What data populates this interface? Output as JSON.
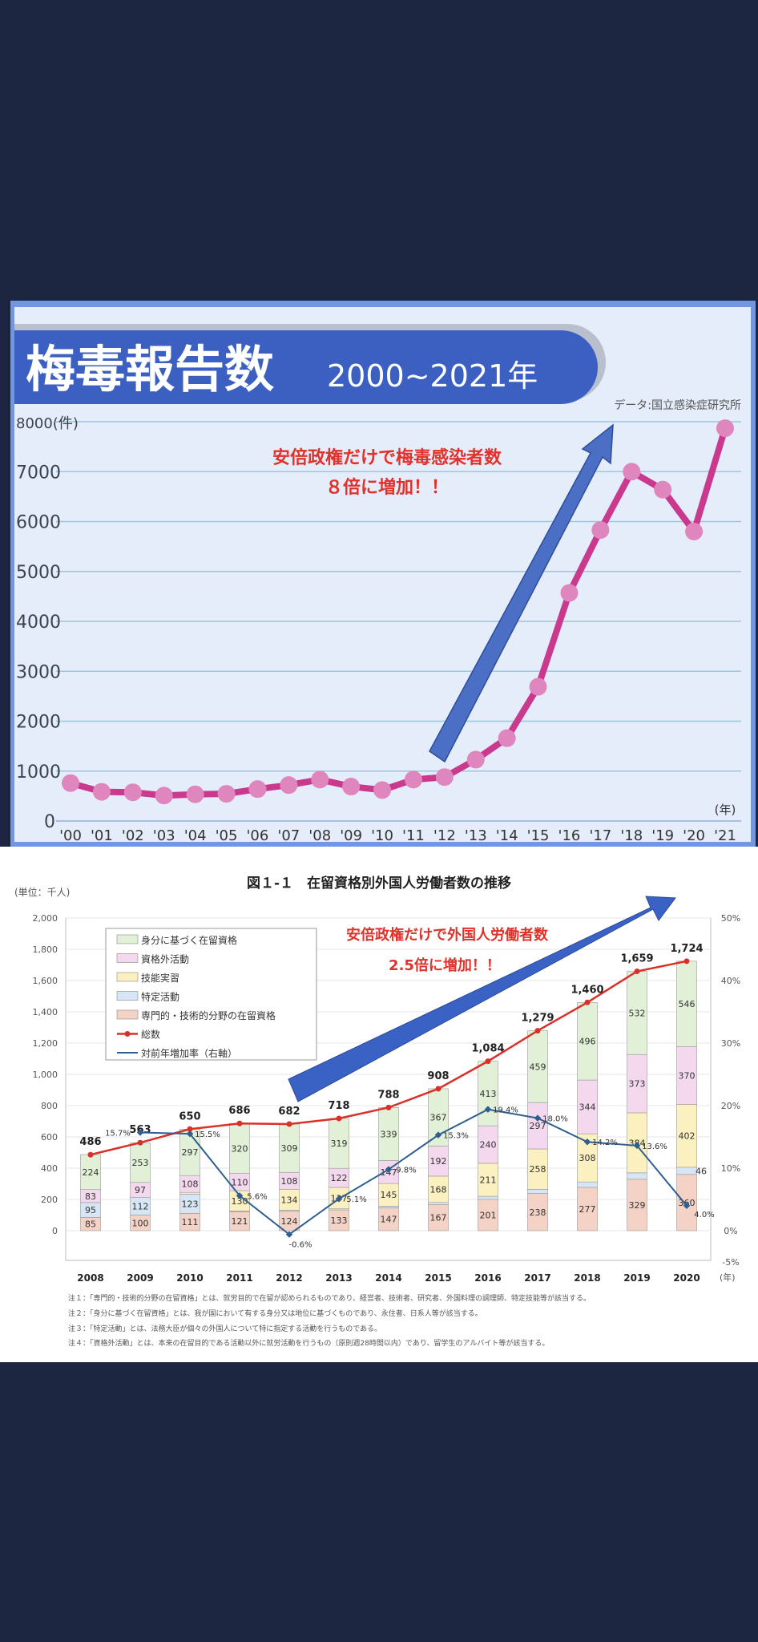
{
  "chart_data": [
    {
      "type": "line",
      "title": "梅毒報告数",
      "subtitle": "2000~2021年",
      "source": "データ:国立感染症研究所",
      "ylabel": "8000(件)",
      "xlabel": "(年)",
      "ylim": [
        0,
        8000
      ],
      "yticks": [
        "0",
        "1000",
        "2000",
        "3000",
        "4000",
        "5000",
        "6000",
        "7000",
        "8000(件)"
      ],
      "grid": true,
      "categories": [
        "'00",
        "'01",
        "'02",
        "'03",
        "'04",
        "'05",
        "'06",
        "'07",
        "'08",
        "'09",
        "'10",
        "'11",
        "'12",
        "'13",
        "'14",
        "'15",
        "'16",
        "'17",
        "'18",
        "'19",
        "'20",
        "'21"
      ],
      "values": [
        760,
        585,
        575,
        510,
        535,
        545,
        640,
        720,
        830,
        690,
        620,
        830,
        880,
        1230,
        1660,
        2690,
        4570,
        5830,
        7000,
        6640,
        5800,
        7870
      ],
      "annotation": [
        "安倍政権だけで梅毒感染者数",
        "８倍に増加！！"
      ],
      "colors": {
        "line": "#c93a8e",
        "marker": "#de86bd",
        "arrow": "#4a6fc4",
        "annotation": "#e0312a",
        "banner": "#3b60c2"
      }
    },
    {
      "type": "bar",
      "stacked": true,
      "title": "図１-１　在留資格別外国人労働者数の推移",
      "unit_label": "(単位：千人)",
      "xlabel": "(年)",
      "ylim": [
        -100,
        2000
      ],
      "yticks": [
        "0",
        "200",
        "400",
        "600",
        "800",
        "1,000",
        "1,200",
        "1,400",
        "1,600",
        "1,800",
        "2,000"
      ],
      "y2lim": [
        -5,
        50
      ],
      "y2ticks": [
        "-5%",
        "0%",
        "10%",
        "20%",
        "30%",
        "40%",
        "50%"
      ],
      "legend_placement": "top-left",
      "categories": [
        "2008",
        "2009",
        "2010",
        "2011",
        "2012",
        "2013",
        "2014",
        "2015",
        "2016",
        "2017",
        "2018",
        "2019",
        "2020"
      ],
      "series": [
        {
          "name": "専門的・技術的分野の在留資格",
          "color": "#f4d2c6",
          "values": [
            85,
            100,
            111,
            121,
            124,
            133,
            147,
            167,
            201,
            238,
            277,
            329,
            360
          ],
          "labels": [
            "85",
            "100",
            "111",
            "121",
            "124",
            "133",
            "147",
            "167",
            "201",
            "238",
            "277",
            "329",
            "360"
          ]
        },
        {
          "name": "特定活動",
          "color": "#d6e6f4",
          "values": [
            95,
            112,
            123,
            5,
            7,
            7,
            10,
            14,
            19,
            27,
            35,
            41,
            46
          ],
          "labels": [
            "95",
            "112",
            "123",
            "",
            "",
            "",
            "",
            "",
            "",
            "",
            "",
            "",
            "46"
          ]
        },
        {
          "name": "技能実習",
          "color": "#fbf0bf",
          "values": [
            0,
            0,
            11,
            130,
            134,
            137,
            145,
            168,
            211,
            258,
            308,
            384,
            402
          ],
          "labels": [
            "",
            "",
            "",
            "130",
            "134",
            "137",
            "145",
            "168",
            "211",
            "258",
            "308",
            "384",
            "402"
          ]
        },
        {
          "name": "資格外活動",
          "color": "#f4d8ee",
          "values": [
            83,
            97,
            108,
            110,
            108,
            122,
            147,
            192,
            240,
            297,
            344,
            373,
            370
          ],
          "labels": [
            "83",
            "97",
            "108",
            "110",
            "108",
            "122",
            "147",
            "192",
            "240",
            "297",
            "344",
            "373",
            "370"
          ]
        },
        {
          "name": "身分に基づく在留資格",
          "color": "#e1f0d6",
          "values": [
            224,
            253,
            297,
            320,
            309,
            319,
            339,
            367,
            413,
            459,
            496,
            532,
            546
          ],
          "labels": [
            "224",
            "253",
            "297",
            "320",
            "309",
            "319",
            "339",
            "367",
            "413",
            "459",
            "496",
            "532",
            "546"
          ]
        }
      ],
      "total": {
        "name": "総数",
        "color": "#d9302a",
        "values": [
          486,
          563,
          650,
          686,
          682,
          718,
          788,
          908,
          1084,
          1279,
          1460,
          1659,
          1724
        ],
        "labels": [
          "486",
          "563",
          "650",
          "686",
          "682",
          "718",
          "788",
          "908",
          "1,084",
          "1,279",
          "1,460",
          "1,659",
          "1,724"
        ]
      },
      "growth_rate": {
        "name": "対前年増加率（右軸）",
        "color": "#2f5f8f",
        "values": [
          null,
          15.7,
          15.5,
          5.6,
          -0.6,
          5.1,
          9.8,
          15.3,
          19.4,
          18.0,
          14.2,
          13.6,
          4.0
        ],
        "labels": [
          "",
          "15.7%",
          "15.5%",
          "5.6%",
          "-0.6%",
          "5.1%",
          "9.8%",
          "15.3%",
          "19.4%",
          "18.0%",
          "14.2%",
          "13.6%",
          "4.0%"
        ]
      },
      "annotation": [
        "安倍政権だけで外国人労働者数",
        "2.5倍に増加！！"
      ],
      "notes": [
        "注１：「専門的・技術的分野の在留資格」とは、就労目的で在留が認められるものであり、経営者、技術者、研究者、外国料理の調理師、特定技能等が該当する。",
        "注２：「身分に基づく在留資格」とは、我が国において有する身分又は地位に基づくものであり、永住者、日系人等が該当する。",
        "注３：「特定活動」とは、法務大臣が個々の外国人について特に指定する活動を行うものである。",
        "注４：「資格外活動」とは、本来の在留目的である活動以外に就労活動を行うもの（原則週28時間以内）であり、留学生のアルバイト等が該当する。"
      ]
    }
  ]
}
